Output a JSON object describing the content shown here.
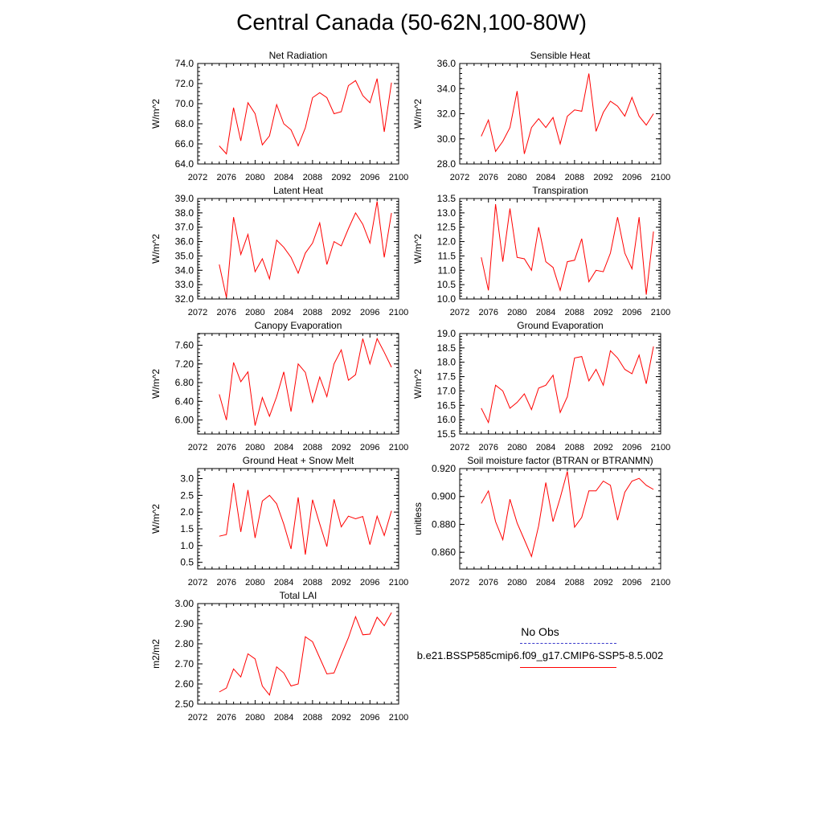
{
  "figure": {
    "title": "Central Canada (50-62N,100-80W)",
    "legend": {
      "obs_label": "No Obs",
      "model_label": "b.e21.BSSP585cmip6.f09_g17.CMIP6-SSP5-8.5.002",
      "obs_color": "#3a3acc",
      "model_color": "#ff0000"
    }
  },
  "chart_data": [
    {
      "type": "line",
      "title": "Net Radiation",
      "ylabel": "W/m^2",
      "xlim": [
        2072,
        2100
      ],
      "ylim": [
        64,
        74
      ],
      "xticks": [
        "2072",
        "2076",
        "2080",
        "2084",
        "2088",
        "2092",
        "2096",
        "2100"
      ],
      "yticks": [
        "64.0",
        "66.0",
        "68.0",
        "70.0",
        "72.0",
        "74.0"
      ],
      "series": [
        {
          "color": "#ff0000",
          "x": [
            2075,
            2076,
            2077,
            2078,
            2079,
            2080,
            2081,
            2082,
            2083,
            2084,
            2085,
            2086,
            2087,
            2088,
            2089,
            2090,
            2091,
            2092,
            2093,
            2094,
            2095,
            2096,
            2097,
            2098,
            2099
          ],
          "values": [
            65.8,
            65.0,
            69.6,
            66.3,
            70.1,
            69.0,
            65.9,
            66.8,
            69.9,
            68.0,
            67.4,
            65.8,
            67.6,
            70.6,
            71.1,
            70.6,
            69.0,
            69.2,
            71.8,
            72.3,
            70.8,
            70.1,
            72.5,
            67.2,
            72.1
          ]
        }
      ]
    },
    {
      "type": "line",
      "title": "Sensible Heat",
      "ylabel": "W/m^2",
      "xlim": [
        2072,
        2100
      ],
      "ylim": [
        28,
        36
      ],
      "xticks": [
        "2072",
        "2076",
        "2080",
        "2084",
        "2088",
        "2092",
        "2096",
        "2100"
      ],
      "yticks": [
        "28.0",
        "30.0",
        "32.0",
        "34.0",
        "36.0"
      ],
      "series": [
        {
          "color": "#ff0000",
          "x": [
            2075,
            2076,
            2077,
            2078,
            2079,
            2080,
            2081,
            2082,
            2083,
            2084,
            2085,
            2086,
            2087,
            2088,
            2089,
            2090,
            2091,
            2092,
            2093,
            2094,
            2095,
            2096,
            2097,
            2098,
            2099
          ],
          "values": [
            30.2,
            31.5,
            29.0,
            29.8,
            30.9,
            33.8,
            28.8,
            30.9,
            31.6,
            30.9,
            31.7,
            29.6,
            31.8,
            32.3,
            32.2,
            35.2,
            30.6,
            32.1,
            33.0,
            32.6,
            31.8,
            33.3,
            31.8,
            31.1,
            32.0
          ]
        }
      ]
    },
    {
      "type": "line",
      "title": "Latent Heat",
      "ylabel": "W/m^2",
      "xlim": [
        2072,
        2100
      ],
      "ylim": [
        32,
        39
      ],
      "xticks": [
        "2072",
        "2076",
        "2080",
        "2084",
        "2088",
        "2092",
        "2096",
        "2100"
      ],
      "yticks": [
        "32.0",
        "33.0",
        "34.0",
        "35.0",
        "36.0",
        "37.0",
        "38.0",
        "39.0"
      ],
      "series": [
        {
          "color": "#ff0000",
          "x": [
            2075,
            2076,
            2077,
            2078,
            2079,
            2080,
            2081,
            2082,
            2083,
            2084,
            2085,
            2086,
            2087,
            2088,
            2089,
            2090,
            2091,
            2092,
            2093,
            2094,
            2095,
            2096,
            2097,
            2098,
            2099
          ],
          "values": [
            34.4,
            32.1,
            37.7,
            35.1,
            36.5,
            33.9,
            34.8,
            33.4,
            36.1,
            35.6,
            34.9,
            33.8,
            35.2,
            35.9,
            37.3,
            34.4,
            36.0,
            35.7,
            36.9,
            38.0,
            37.2,
            35.9,
            38.8,
            34.9,
            38.0
          ]
        }
      ]
    },
    {
      "type": "line",
      "title": "Transpiration",
      "ylabel": "W/m^2",
      "xlim": [
        2072,
        2100
      ],
      "ylim": [
        10,
        13.5
      ],
      "xticks": [
        "2072",
        "2076",
        "2080",
        "2084",
        "2088",
        "2092",
        "2096",
        "2100"
      ],
      "yticks": [
        "10.0",
        "10.5",
        "11.0",
        "11.5",
        "12.0",
        "12.5",
        "13.0",
        "13.5"
      ],
      "series": [
        {
          "color": "#ff0000",
          "x": [
            2075,
            2076,
            2077,
            2078,
            2079,
            2080,
            2081,
            2082,
            2083,
            2084,
            2085,
            2086,
            2087,
            2088,
            2089,
            2090,
            2091,
            2092,
            2093,
            2094,
            2095,
            2096,
            2097,
            2098,
            2099
          ],
          "values": [
            11.45,
            10.3,
            13.3,
            11.3,
            13.15,
            11.45,
            11.4,
            11.0,
            12.5,
            11.3,
            11.1,
            10.3,
            11.3,
            11.35,
            12.1,
            10.6,
            11.0,
            10.95,
            11.6,
            12.85,
            11.6,
            11.05,
            12.85,
            10.15,
            12.35
          ]
        }
      ]
    },
    {
      "type": "line",
      "title": "Canopy Evaporation",
      "ylabel": "W/m^2",
      "xlim": [
        2072,
        2100
      ],
      "ylim": [
        5.7,
        7.85
      ],
      "xticks": [
        "2072",
        "2076",
        "2080",
        "2084",
        "2088",
        "2092",
        "2096",
        "2100"
      ],
      "yticks": [
        "6.00",
        "6.40",
        "6.80",
        "7.20",
        "7.60"
      ],
      "series": [
        {
          "color": "#ff0000",
          "x": [
            2075,
            2076,
            2077,
            2078,
            2079,
            2080,
            2081,
            2082,
            2083,
            2084,
            2085,
            2086,
            2087,
            2088,
            2089,
            2090,
            2091,
            2092,
            2093,
            2094,
            2095,
            2096,
            2097,
            2098,
            2099
          ],
          "values": [
            6.55,
            6.0,
            7.23,
            6.82,
            7.03,
            5.88,
            6.48,
            6.08,
            6.5,
            7.03,
            6.18,
            7.2,
            7.02,
            6.38,
            6.92,
            6.5,
            7.2,
            7.5,
            6.85,
            6.97,
            7.74,
            7.2,
            7.74,
            7.45,
            7.13
          ]
        }
      ]
    },
    {
      "type": "line",
      "title": "Ground Evaporation",
      "ylabel": "W/m^2",
      "xlim": [
        2072,
        2100
      ],
      "ylim": [
        15.5,
        19
      ],
      "xticks": [
        "2072",
        "2076",
        "2080",
        "2084",
        "2088",
        "2092",
        "2096",
        "2100"
      ],
      "yticks": [
        "15.5",
        "16.0",
        "16.5",
        "17.0",
        "17.5",
        "18.0",
        "18.5",
        "19.0"
      ],
      "series": [
        {
          "color": "#ff0000",
          "x": [
            2075,
            2076,
            2077,
            2078,
            2079,
            2080,
            2081,
            2082,
            2083,
            2084,
            2085,
            2086,
            2087,
            2088,
            2089,
            2090,
            2091,
            2092,
            2093,
            2094,
            2095,
            2096,
            2097,
            2098,
            2099
          ],
          "values": [
            16.4,
            15.9,
            17.2,
            17.0,
            16.4,
            16.6,
            16.9,
            16.35,
            17.1,
            17.2,
            17.55,
            16.25,
            16.8,
            18.15,
            18.2,
            17.35,
            17.75,
            17.2,
            18.4,
            18.15,
            17.75,
            17.6,
            18.25,
            17.25,
            18.55
          ]
        }
      ]
    },
    {
      "type": "line",
      "title": "Ground Heat + Snow Melt",
      "ylabel": "W/m^2",
      "xlim": [
        2072,
        2100
      ],
      "ylim": [
        0.3,
        3.3
      ],
      "xticks": [
        "2072",
        "2076",
        "2080",
        "2084",
        "2088",
        "2092",
        "2096",
        "2100"
      ],
      "yticks": [
        "0.5",
        "1.0",
        "1.5",
        "2.0",
        "2.5",
        "3.0"
      ],
      "series": [
        {
          "color": "#ff0000",
          "x": [
            2075,
            2076,
            2077,
            2078,
            2079,
            2080,
            2081,
            2082,
            2083,
            2084,
            2085,
            2086,
            2087,
            2088,
            2089,
            2090,
            2091,
            2092,
            2093,
            2094,
            2095,
            2096,
            2097,
            2098,
            2099
          ],
          "values": [
            1.28,
            1.33,
            2.87,
            1.41,
            2.66,
            1.23,
            2.33,
            2.5,
            2.25,
            1.64,
            0.9,
            2.44,
            0.73,
            2.37,
            1.65,
            0.97,
            2.38,
            1.56,
            1.88,
            1.8,
            1.87,
            1.03,
            1.88,
            1.3,
            2.04
          ]
        }
      ]
    },
    {
      "type": "line",
      "title": "Soil moisture factor (BTRAN or BTRANMN)",
      "ylabel": "unitless",
      "xlim": [
        2072,
        2100
      ],
      "ylim": [
        0.848,
        0.92
      ],
      "xticks": [
        "2072",
        "2076",
        "2080",
        "2084",
        "2088",
        "2092",
        "2096",
        "2100"
      ],
      "yticks": [
        "0.860",
        "0.880",
        "0.900",
        "0.920"
      ],
      "series": [
        {
          "color": "#ff0000",
          "x": [
            2075,
            2076,
            2077,
            2078,
            2079,
            2080,
            2081,
            2082,
            2083,
            2084,
            2085,
            2086,
            2087,
            2088,
            2089,
            2090,
            2091,
            2092,
            2093,
            2094,
            2095,
            2096,
            2097,
            2098,
            2099
          ],
          "values": [
            0.895,
            0.904,
            0.882,
            0.869,
            0.898,
            0.881,
            0.869,
            0.857,
            0.879,
            0.91,
            0.882,
            0.899,
            0.918,
            0.878,
            0.885,
            0.904,
            0.904,
            0.911,
            0.908,
            0.883,
            0.903,
            0.911,
            0.913,
            0.908,
            0.905
          ]
        }
      ]
    },
    {
      "type": "line",
      "title": "Total LAI",
      "ylabel": "m2/m2",
      "xlim": [
        2072,
        2100
      ],
      "ylim": [
        2.5,
        3.0
      ],
      "xticks": [
        "2072",
        "2076",
        "2080",
        "2084",
        "2088",
        "2092",
        "2096",
        "2100"
      ],
      "yticks": [
        "2.50",
        "2.60",
        "2.70",
        "2.80",
        "2.90",
        "3.00"
      ],
      "series": [
        {
          "color": "#ff0000",
          "x": [
            2075,
            2076,
            2077,
            2078,
            2079,
            2080,
            2081,
            2082,
            2083,
            2084,
            2085,
            2086,
            2087,
            2088,
            2089,
            2090,
            2091,
            2092,
            2093,
            2094,
            2095,
            2096,
            2097,
            2098,
            2099
          ],
          "values": [
            2.56,
            2.58,
            2.675,
            2.635,
            2.75,
            2.725,
            2.59,
            2.545,
            2.685,
            2.655,
            2.59,
            2.6,
            2.835,
            2.81,
            2.73,
            2.65,
            2.655,
            2.745,
            2.83,
            2.935,
            2.845,
            2.848,
            2.932,
            2.89,
            2.955
          ]
        }
      ]
    }
  ]
}
